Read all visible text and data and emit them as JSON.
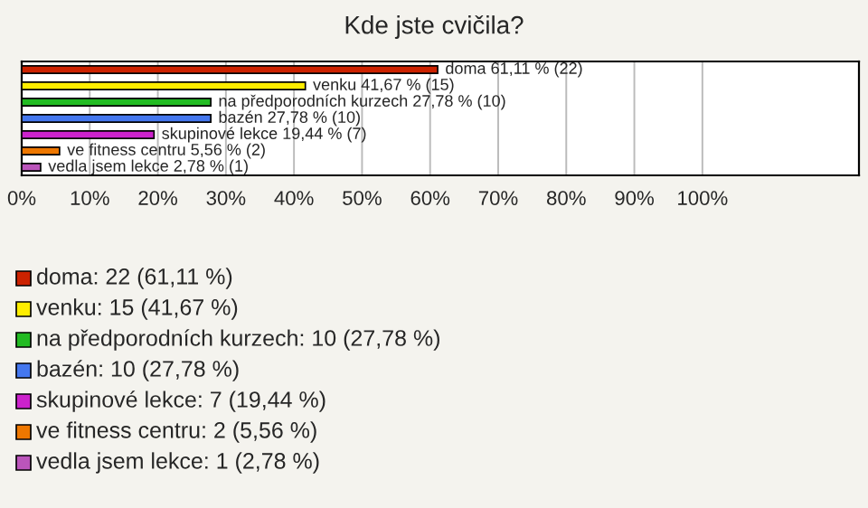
{
  "chart_data": {
    "type": "bar",
    "orientation": "horizontal",
    "title": "Kde jste cvičila?",
    "categories": [
      null,
      null,
      null,
      null,
      null,
      null,
      null
    ],
    "values": [
      61.11,
      41.67,
      27.78,
      27.78,
      19.44,
      5.56,
      2.78
    ],
    "colors": [
      "#cc2200",
      "#ffee00",
      "#22bb22",
      "#4477ee",
      "#cc22cc",
      "#ee7700",
      "#bb55bb"
    ],
    "value_labels": [
      "doma 61,11 % (22)",
      "venku 41,67 % (15)",
      "na předporodních kurzech 27,78 % (10)",
      "bazén 27,78 % (10)",
      "skupinové lekce 19,44 % (7)",
      "ve fitness centru 5,56 % (2)",
      "vedla jsem lekce 2,78 % (1)"
    ],
    "xlim": [
      0,
      123
    ],
    "xticks": [
      {
        "value": 0,
        "label": "0%"
      },
      {
        "value": 10,
        "label": "10%"
      },
      {
        "value": 20,
        "label": "20%"
      },
      {
        "value": 30,
        "label": "30%"
      },
      {
        "value": 40,
        "label": "40%"
      },
      {
        "value": 50,
        "label": "50%"
      },
      {
        "value": 60,
        "label": "60%"
      },
      {
        "value": 70,
        "label": "70%"
      },
      {
        "value": 80,
        "label": "80%"
      },
      {
        "value": 90,
        "label": "90%"
      },
      {
        "value": 100,
        "label": "100%"
      }
    ],
    "grid": "x",
    "tick_labels": "x",
    "annotations": [
      "doma: 22 (61,11 %)",
      "venku: 15 (41,67 %)",
      "na předporodních kurzech: 10 (27,78 %)",
      "bazén: 10 (27,78 %)",
      "skupinové lekce: 7 (19,44 %)",
      "ve fitness centru: 2 (5,56 %)",
      "vedla jsem lekce: 1 (2,78 %)"
    ]
  }
}
